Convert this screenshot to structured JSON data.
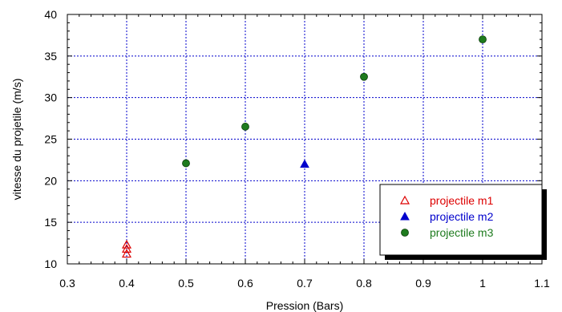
{
  "chart_data": {
    "type": "scatter",
    "xlabel": "Pression (Bars)",
    "ylabel": "vitesse du projetile (m/s)",
    "xlim": [
      0.3,
      1.1
    ],
    "ylim": [
      10,
      40
    ],
    "x_ticks": [
      0.3,
      0.4,
      0.5,
      0.6,
      0.7,
      0.8,
      0.9,
      1.0,
      1.1
    ],
    "x_tick_labels": [
      "0.3",
      "0.4",
      "0.5",
      "0.6",
      "0.7",
      "0.8",
      "0.9",
      "1",
      "1.1"
    ],
    "y_ticks": [
      10,
      15,
      20,
      25,
      30,
      35,
      40
    ],
    "y_tick_labels": [
      "10",
      "15",
      "20",
      "25",
      "30",
      "35",
      "40"
    ],
    "grid": true,
    "legend_position": "bottom-right",
    "series": [
      {
        "name": "projectile m1",
        "marker": "open-triangle",
        "color": "#dd0000",
        "points": [
          {
            "x": 0.4,
            "y": 12.3
          },
          {
            "x": 0.4,
            "y": 11.8
          },
          {
            "x": 0.4,
            "y": 11.2
          }
        ]
      },
      {
        "name": "projectile m2",
        "marker": "filled-triangle",
        "color": "#0000cc",
        "points": [
          {
            "x": 0.7,
            "y": 22.0
          }
        ]
      },
      {
        "name": "projectile m3",
        "marker": "filled-circle",
        "color": "#1e7b1e",
        "points": [
          {
            "x": 0.5,
            "y": 22.1
          },
          {
            "x": 0.6,
            "y": 26.5
          },
          {
            "x": 0.8,
            "y": 32.5
          },
          {
            "x": 1.0,
            "y": 37.0
          }
        ]
      }
    ]
  }
}
